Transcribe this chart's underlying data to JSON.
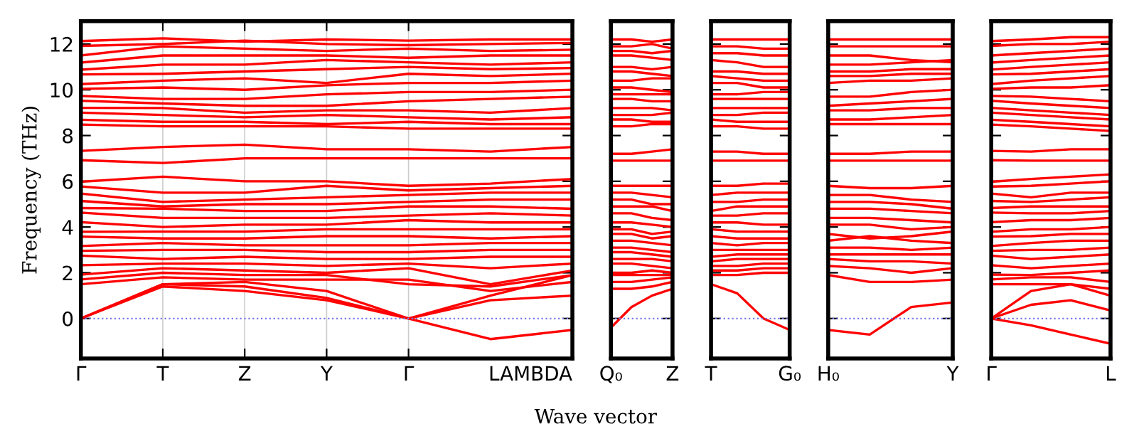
{
  "chart_data": [
    {
      "type": "line",
      "xlabel": "Wave vector",
      "ylabel": "Frequency (THz)",
      "categories": [
        "Γ",
        "T",
        "Z",
        "Y",
        "Γ",
        null,
        "LAMBDA"
      ],
      "ylim": [
        -1.75,
        13
      ],
      "yticks": [
        0,
        2,
        4,
        6,
        8,
        10,
        12
      ],
      "grid": "x",
      "line_style": "solid",
      "ref_lines": [
        {
          "axis": "y",
          "value": 0,
          "color": "#7777ee",
          "line_style": "dotted"
        }
      ],
      "series": [
        {
          "color": "#ff0000",
          "values": [
            12.13,
            12.25,
            12.1,
            12.2,
            12.15,
            12.2,
            12.2
          ]
        },
        {
          "color": "#ff0000",
          "values": [
            11.92,
            12.0,
            12.15,
            12.0,
            11.95,
            12.0,
            12.05
          ]
        },
        {
          "color": "#ff0000",
          "values": [
            11.5,
            11.9,
            11.8,
            11.7,
            11.8,
            11.7,
            11.75
          ]
        },
        {
          "color": "#ff0000",
          "values": [
            11.19,
            11.5,
            11.5,
            11.5,
            11.4,
            11.5,
            11.5
          ]
        },
        {
          "color": "#ff0000",
          "values": [
            10.88,
            11.1,
            11.1,
            11.3,
            11.2,
            11.1,
            11.2
          ]
        },
        {
          "color": "#ff0000",
          "values": [
            10.67,
            10.7,
            10.8,
            10.9,
            11.0,
            10.9,
            10.95
          ]
        },
        {
          "color": "#ff0000",
          "values": [
            10.25,
            10.4,
            10.5,
            10.3,
            10.7,
            10.6,
            10.7
          ]
        },
        {
          "color": "#ff0000",
          "values": [
            10.04,
            10.1,
            10.0,
            10.2,
            10.3,
            10.3,
            10.4
          ]
        },
        {
          "color": "#ff0000",
          "values": [
            9.73,
            9.6,
            9.6,
            9.8,
            9.9,
            9.9,
            10.0
          ]
        },
        {
          "color": "#ff0000",
          "values": [
            9.52,
            9.4,
            9.3,
            9.3,
            9.5,
            9.6,
            9.7
          ]
        },
        {
          "color": "#ff0000",
          "values": [
            9.21,
            9.2,
            9.0,
            9.1,
            9.1,
            9.0,
            9.2
          ]
        },
        {
          "color": "#ff0000",
          "values": [
            9.0,
            8.9,
            8.8,
            8.9,
            8.8,
            8.7,
            8.8
          ]
        },
        {
          "color": "#ff0000",
          "values": [
            8.69,
            8.6,
            8.6,
            8.5,
            8.6,
            8.5,
            8.5
          ]
        },
        {
          "color": "#ff0000",
          "values": [
            8.48,
            8.4,
            8.4,
            8.4,
            8.3,
            8.3,
            8.3
          ]
        },
        {
          "color": "#ff0000",
          "values": [
            7.33,
            7.5,
            7.6,
            7.4,
            7.4,
            7.3,
            7.5
          ]
        },
        {
          "color": "#ff0000",
          "values": [
            6.92,
            6.8,
            7.0,
            7.0,
            7.0,
            7.0,
            7.0
          ]
        },
        {
          "color": "#ff0000",
          "values": [
            5.98,
            6.2,
            6.0,
            6.0,
            5.8,
            5.9,
            6.1
          ]
        },
        {
          "color": "#ff0000",
          "values": [
            5.77,
            5.5,
            5.5,
            5.8,
            5.6,
            5.7,
            5.8
          ]
        },
        {
          "color": "#ff0000",
          "values": [
            5.46,
            5.1,
            5.2,
            5.3,
            5.4,
            5.5,
            5.5
          ]
        },
        {
          "color": "#ff0000",
          "values": [
            5.14,
            4.9,
            5.0,
            5.0,
            5.1,
            5.2,
            5.2
          ]
        },
        {
          "color": "#ff0000",
          "values": [
            4.83,
            4.8,
            4.7,
            4.7,
            4.9,
            4.9,
            4.8
          ]
        },
        {
          "color": "#ff0000",
          "values": [
            4.63,
            4.4,
            4.4,
            4.4,
            4.5,
            4.6,
            4.5
          ]
        },
        {
          "color": "#ff0000",
          "values": [
            4.21,
            4.0,
            4.1,
            4.1,
            4.3,
            4.2,
            4.2
          ]
        },
        {
          "color": "#ff0000",
          "values": [
            3.79,
            3.8,
            3.8,
            3.9,
            3.9,
            3.9,
            3.9
          ]
        },
        {
          "color": "#ff0000",
          "values": [
            3.58,
            3.5,
            3.5,
            3.6,
            3.6,
            3.5,
            3.6
          ]
        },
        {
          "color": "#ff0000",
          "values": [
            3.17,
            3.3,
            3.2,
            3.2,
            3.2,
            3.3,
            3.3
          ]
        },
        {
          "color": "#ff0000",
          "values": [
            2.96,
            3.0,
            3.0,
            2.9,
            2.9,
            3.0,
            3.0
          ]
        },
        {
          "color": "#ff0000",
          "values": [
            2.75,
            2.6,
            2.7,
            2.6,
            2.6,
            2.7,
            2.7
          ]
        },
        {
          "color": "#ff0000",
          "values": [
            2.33,
            2.4,
            2.4,
            2.3,
            2.4,
            2.2,
            2.4
          ]
        },
        {
          "color": "#ff0000",
          "values": [
            1.92,
            2.2,
            2.1,
            2.0,
            2.2,
            1.5,
            2.1
          ]
        },
        {
          "color": "#ff0000",
          "values": [
            1.71,
            2.0,
            1.9,
            1.9,
            1.5,
            1.4,
            1.9
          ]
        },
        {
          "color": "#ff0000",
          "values": [
            1.5,
            1.8,
            1.7,
            1.7,
            1.7,
            1.2,
            1.6
          ]
        },
        {
          "color": "#ff0000",
          "values": [
            0,
            1.5,
            1.6,
            1.2,
            0,
            1.0,
            1.9
          ]
        },
        {
          "color": "#ff0000",
          "values": [
            0,
            1.5,
            1.4,
            0.9,
            0,
            0.8,
            1.0
          ]
        },
        {
          "color": "#ff0000",
          "values": [
            0,
            1.4,
            1.2,
            0.8,
            0,
            -0.9,
            -0.5
          ]
        }
      ]
    },
    {
      "type": "line",
      "categories": [
        "Q₀",
        null,
        null,
        "Z"
      ],
      "ylim": [
        -1.75,
        13
      ],
      "yticks": [
        0,
        2,
        4,
        6,
        8,
        10,
        12
      ],
      "tick_labels": "x",
      "line_style": "solid",
      "ref_lines": [
        {
          "axis": "y",
          "value": 0,
          "color": "#7777ee",
          "line_style": "dotted"
        }
      ],
      "series": [
        {
          "color": "#ff0000",
          "values": [
            12.2,
            12.2,
            12.1,
            12.2
          ]
        },
        {
          "color": "#ff0000",
          "values": [
            11.9,
            11.9,
            12.0,
            11.8
          ]
        },
        {
          "color": "#ff0000",
          "values": [
            11.7,
            11.7,
            11.6,
            11.7
          ]
        },
        {
          "color": "#ff0000",
          "values": [
            11.5,
            11.5,
            11.4,
            11.3
          ]
        },
        {
          "color": "#ff0000",
          "values": [
            11.0,
            11.0,
            10.9,
            11.0
          ]
        },
        {
          "color": "#ff0000",
          "values": [
            10.8,
            10.8,
            10.7,
            10.6
          ]
        },
        {
          "color": "#ff0000",
          "values": [
            10.4,
            10.4,
            10.5,
            10.5
          ]
        },
        {
          "color": "#ff0000",
          "values": [
            10.1,
            10.1,
            10.0,
            9.9
          ]
        },
        {
          "color": "#ff0000",
          "values": [
            9.8,
            9.8,
            9.8,
            9.8
          ]
        },
        {
          "color": "#ff0000",
          "values": [
            9.6,
            9.6,
            9.5,
            9.5
          ]
        },
        {
          "color": "#ff0000",
          "values": [
            9.2,
            9.2,
            9.2,
            9.1
          ]
        },
        {
          "color": "#ff0000",
          "values": [
            8.9,
            8.9,
            8.9,
            9.0
          ]
        },
        {
          "color": "#ff0000",
          "values": [
            8.7,
            8.7,
            8.6,
            8.6
          ]
        },
        {
          "color": "#ff0000",
          "values": [
            8.4,
            8.4,
            8.5,
            8.5
          ]
        },
        {
          "color": "#ff0000",
          "values": [
            7.2,
            7.2,
            7.3,
            7.4
          ]
        },
        {
          "color": "#ff0000",
          "values": [
            6.9,
            6.9,
            6.9,
            6.9
          ]
        },
        {
          "color": "#ff0000",
          "values": [
            5.8,
            5.8,
            5.8,
            5.8
          ]
        },
        {
          "color": "#ff0000",
          "values": [
            5.5,
            5.5,
            5.4,
            5.3
          ]
        },
        {
          "color": "#ff0000",
          "values": [
            5.2,
            5.2,
            5.0,
            5.0
          ]
        },
        {
          "color": "#ff0000",
          "values": [
            4.9,
            4.9,
            4.9,
            4.7
          ]
        },
        {
          "color": "#ff0000",
          "values": [
            4.6,
            4.6,
            4.4,
            4.3
          ]
        },
        {
          "color": "#ff0000",
          "values": [
            4.2,
            4.2,
            4.1,
            4.0
          ]
        },
        {
          "color": "#ff0000",
          "values": [
            3.9,
            3.9,
            3.7,
            3.8
          ]
        },
        {
          "color": "#ff0000",
          "values": [
            3.7,
            3.7,
            3.5,
            3.6
          ]
        },
        {
          "color": "#ff0000",
          "values": [
            3.4,
            3.4,
            3.3,
            3.2
          ]
        },
        {
          "color": "#ff0000",
          "values": [
            3.1,
            3.1,
            3.0,
            2.9
          ]
        },
        {
          "color": "#ff0000",
          "values": [
            2.9,
            2.9,
            2.8,
            2.7
          ]
        },
        {
          "color": "#ff0000",
          "values": [
            2.6,
            2.6,
            2.6,
            2.5
          ]
        },
        {
          "color": "#ff0000",
          "values": [
            2.4,
            2.4,
            2.3,
            2.2
          ]
        },
        {
          "color": "#ff0000",
          "values": [
            2.0,
            2.0,
            2.1,
            2.0
          ]
        },
        {
          "color": "#ff0000",
          "values": [
            1.9,
            1.9,
            1.9,
            1.9
          ]
        },
        {
          "color": "#ff0000",
          "values": [
            1.6,
            1.6,
            1.7,
            1.8
          ]
        },
        {
          "color": "#ff0000",
          "values": [
            1.3,
            1.3,
            1.4,
            1.6
          ]
        },
        {
          "color": "#ff0000",
          "values": [
            -0.4,
            0.5,
            1.0,
            1.3
          ]
        }
      ]
    },
    {
      "type": "line",
      "categories": [
        "T",
        null,
        null,
        "G₀"
      ],
      "ylim": [
        -1.75,
        13
      ],
      "yticks": [
        0,
        2,
        4,
        6,
        8,
        10,
        12
      ],
      "tick_labels": "x",
      "line_style": "solid",
      "ref_lines": [
        {
          "axis": "y",
          "value": 0,
          "color": "#7777ee",
          "line_style": "dotted"
        }
      ],
      "series": [
        {
          "color": "#ff0000",
          "values": [
            12.2,
            12.2,
            12.2,
            12.2
          ]
        },
        {
          "color": "#ff0000",
          "values": [
            11.9,
            11.9,
            11.8,
            11.8
          ]
        },
        {
          "color": "#ff0000",
          "values": [
            11.6,
            11.6,
            11.5,
            11.5
          ]
        },
        {
          "color": "#ff0000",
          "values": [
            11.3,
            11.2,
            11.0,
            11.0
          ]
        },
        {
          "color": "#ff0000",
          "values": [
            10.8,
            10.8,
            10.7,
            10.7
          ]
        },
        {
          "color": "#ff0000",
          "values": [
            10.6,
            10.5,
            10.4,
            10.4
          ]
        },
        {
          "color": "#ff0000",
          "values": [
            10.3,
            10.3,
            10.1,
            10.1
          ]
        },
        {
          "color": "#ff0000",
          "values": [
            9.8,
            9.8,
            9.9,
            9.9
          ]
        },
        {
          "color": "#ff0000",
          "values": [
            9.6,
            9.6,
            9.6,
            9.6
          ]
        },
        {
          "color": "#ff0000",
          "values": [
            9.2,
            9.2,
            9.2,
            9.2
          ]
        },
        {
          "color": "#ff0000",
          "values": [
            8.9,
            8.9,
            9.0,
            9.0
          ]
        },
        {
          "color": "#ff0000",
          "values": [
            8.7,
            8.6,
            8.6,
            8.6
          ]
        },
        {
          "color": "#ff0000",
          "values": [
            8.4,
            8.4,
            8.3,
            8.3
          ]
        },
        {
          "color": "#ff0000",
          "values": [
            7.3,
            7.3,
            7.2,
            7.2
          ]
        },
        {
          "color": "#ff0000",
          "values": [
            6.9,
            6.9,
            6.9,
            6.9
          ]
        },
        {
          "color": "#ff0000",
          "values": [
            5.8,
            5.8,
            5.9,
            5.9
          ]
        },
        {
          "color": "#ff0000",
          "values": [
            5.4,
            5.5,
            5.5,
            5.5
          ]
        },
        {
          "color": "#ff0000",
          "values": [
            5.1,
            5.1,
            5.2,
            5.2
          ]
        },
        {
          "color": "#ff0000",
          "values": [
            4.7,
            4.9,
            4.9,
            4.9
          ]
        },
        {
          "color": "#ff0000",
          "values": [
            4.5,
            4.5,
            4.6,
            4.6
          ]
        },
        {
          "color": "#ff0000",
          "values": [
            4.2,
            4.2,
            4.1,
            4.1
          ]
        },
        {
          "color": "#ff0000",
          "values": [
            3.9,
            3.8,
            3.8,
            3.8
          ]
        },
        {
          "color": "#ff0000",
          "values": [
            3.6,
            3.5,
            3.5,
            3.5
          ]
        },
        {
          "color": "#ff0000",
          "values": [
            3.3,
            3.2,
            3.3,
            3.3
          ]
        },
        {
          "color": "#ff0000",
          "values": [
            3.0,
            3.0,
            3.0,
            3.0
          ]
        },
        {
          "color": "#ff0000",
          "values": [
            2.7,
            2.8,
            2.8,
            2.8
          ]
        },
        {
          "color": "#ff0000",
          "values": [
            2.5,
            2.6,
            2.6,
            2.6
          ]
        },
        {
          "color": "#ff0000",
          "values": [
            2.3,
            2.3,
            2.4,
            2.4
          ]
        },
        {
          "color": "#ff0000",
          "values": [
            2.1,
            2.1,
            2.2,
            2.2
          ]
        },
        {
          "color": "#ff0000",
          "values": [
            1.9,
            1.9,
            2.0,
            2.0
          ]
        },
        {
          "color": "#ff0000",
          "values": [
            1.5,
            1.1,
            0.0,
            -0.5
          ]
        }
      ]
    },
    {
      "type": "line",
      "categories": [
        "H₀",
        null,
        null,
        "Y"
      ],
      "ylim": [
        -1.75,
        13
      ],
      "yticks": [
        0,
        2,
        4,
        6,
        8,
        10,
        12
      ],
      "tick_labels": "x",
      "line_style": "solid",
      "ref_lines": [
        {
          "axis": "y",
          "value": 0,
          "color": "#7777ee",
          "line_style": "dotted"
        }
      ],
      "series": [
        {
          "color": "#ff0000",
          "values": [
            12.2,
            12.2,
            12.2,
            12.2
          ]
        },
        {
          "color": "#ff0000",
          "values": [
            11.9,
            11.9,
            11.9,
            11.9
          ]
        },
        {
          "color": "#ff0000",
          "values": [
            11.5,
            11.5,
            11.3,
            11.2
          ]
        },
        {
          "color": "#ff0000",
          "values": [
            11.1,
            11.1,
            11.2,
            11.3
          ]
        },
        {
          "color": "#ff0000",
          "values": [
            10.8,
            10.8,
            10.9,
            10.9
          ]
        },
        {
          "color": "#ff0000",
          "values": [
            10.6,
            10.6,
            10.7,
            10.7
          ]
        },
        {
          "color": "#ff0000",
          "values": [
            10.3,
            10.4,
            10.4,
            10.5
          ]
        },
        {
          "color": "#ff0000",
          "values": [
            9.7,
            9.7,
            9.9,
            10.0
          ]
        },
        {
          "color": "#ff0000",
          "values": [
            9.3,
            9.4,
            9.5,
            9.6
          ]
        },
        {
          "color": "#ff0000",
          "values": [
            9.1,
            9.1,
            9.2,
            9.2
          ]
        },
        {
          "color": "#ff0000",
          "values": [
            8.7,
            8.7,
            8.8,
            8.9
          ]
        },
        {
          "color": "#ff0000",
          "values": [
            8.5,
            8.5,
            8.5,
            8.5
          ]
        },
        {
          "color": "#ff0000",
          "values": [
            7.2,
            7.2,
            7.3,
            7.3
          ]
        },
        {
          "color": "#ff0000",
          "values": [
            6.9,
            6.9,
            6.9,
            6.9
          ]
        },
        {
          "color": "#ff0000",
          "values": [
            5.8,
            5.7,
            5.7,
            5.8
          ]
        },
        {
          "color": "#ff0000",
          "values": [
            5.4,
            5.4,
            5.2,
            5.1
          ]
        },
        {
          "color": "#ff0000",
          "values": [
            5.1,
            5.1,
            5.0,
            4.8
          ]
        },
        {
          "color": "#ff0000",
          "values": [
            4.8,
            4.8,
            4.7,
            4.6
          ]
        },
        {
          "color": "#ff0000",
          "values": [
            4.4,
            4.4,
            4.3,
            4.2
          ]
        },
        {
          "color": "#ff0000",
          "values": [
            4.1,
            4.1,
            3.9,
            4.0
          ]
        },
        {
          "color": "#ff0000",
          "values": [
            3.7,
            3.5,
            3.6,
            3.8
          ]
        },
        {
          "color": "#ff0000",
          "values": [
            3.4,
            3.6,
            3.4,
            3.3
          ]
        },
        {
          "color": "#ff0000",
          "values": [
            3.1,
            3.1,
            3.0,
            3.1
          ]
        },
        {
          "color": "#ff0000",
          "values": [
            2.8,
            2.8,
            2.8,
            2.8
          ]
        },
        {
          "color": "#ff0000",
          "values": [
            2.6,
            2.5,
            2.5,
            2.4
          ]
        },
        {
          "color": "#ff0000",
          "values": [
            2.3,
            2.2,
            2.0,
            2.2
          ]
        },
        {
          "color": "#ff0000",
          "values": [
            1.9,
            1.6,
            1.6,
            1.7
          ]
        },
        {
          "color": "#ff0000",
          "values": [
            -0.5,
            -0.7,
            0.5,
            0.7
          ]
        }
      ]
    },
    {
      "type": "line",
      "categories": [
        "Γ",
        null,
        null,
        "L"
      ],
      "ylim": [
        -1.75,
        13
      ],
      "yticks": [
        0,
        2,
        4,
        6,
        8,
        10,
        12
      ],
      "tick_labels": "x",
      "line_style": "solid",
      "ref_lines": [
        {
          "axis": "y",
          "value": 0,
          "color": "#7777ee",
          "line_style": "dotted"
        }
      ],
      "series": [
        {
          "color": "#ff0000",
          "values": [
            12.13,
            12.2,
            12.3,
            12.3
          ]
        },
        {
          "color": "#ff0000",
          "values": [
            11.92,
            12.0,
            12.0,
            12.1
          ]
        },
        {
          "color": "#ff0000",
          "values": [
            11.5,
            11.6,
            11.7,
            11.8
          ]
        },
        {
          "color": "#ff0000",
          "values": [
            11.19,
            11.3,
            11.4,
            11.5
          ]
        },
        {
          "color": "#ff0000",
          "values": [
            10.88,
            11.0,
            11.1,
            11.2
          ]
        },
        {
          "color": "#ff0000",
          "values": [
            10.67,
            10.7,
            10.8,
            10.9
          ]
        },
        {
          "color": "#ff0000",
          "values": [
            10.25,
            10.4,
            10.5,
            10.6
          ]
        },
        {
          "color": "#ff0000",
          "values": [
            10.04,
            10.1,
            10.1,
            10.2
          ]
        },
        {
          "color": "#ff0000",
          "values": [
            9.73,
            9.7,
            9.6,
            9.5
          ]
        },
        {
          "color": "#ff0000",
          "values": [
            9.52,
            9.4,
            9.3,
            9.2
          ]
        },
        {
          "color": "#ff0000",
          "values": [
            9.21,
            9.1,
            9.0,
            8.9
          ]
        },
        {
          "color": "#ff0000",
          "values": [
            9.0,
            8.9,
            8.8,
            8.7
          ]
        },
        {
          "color": "#ff0000",
          "values": [
            8.69,
            8.6,
            8.5,
            8.4
          ]
        },
        {
          "color": "#ff0000",
          "values": [
            8.48,
            8.4,
            8.3,
            8.2
          ]
        },
        {
          "color": "#ff0000",
          "values": [
            7.33,
            7.3,
            7.4,
            7.4
          ]
        },
        {
          "color": "#ff0000",
          "values": [
            6.92,
            6.9,
            6.9,
            6.9
          ]
        },
        {
          "color": "#ff0000",
          "values": [
            5.98,
            6.1,
            6.2,
            6.3
          ]
        },
        {
          "color": "#ff0000",
          "values": [
            5.77,
            5.8,
            5.9,
            6.0
          ]
        },
        {
          "color": "#ff0000",
          "values": [
            5.46,
            5.3,
            5.5,
            5.5
          ]
        },
        {
          "color": "#ff0000",
          "values": [
            5.14,
            5.1,
            5.2,
            5.3
          ]
        },
        {
          "color": "#ff0000",
          "values": [
            4.83,
            4.9,
            4.9,
            4.9
          ]
        },
        {
          "color": "#ff0000",
          "values": [
            4.63,
            4.6,
            4.6,
            4.7
          ]
        },
        {
          "color": "#ff0000",
          "values": [
            4.21,
            4.3,
            4.3,
            4.4
          ]
        },
        {
          "color": "#ff0000",
          "values": [
            3.79,
            3.9,
            3.9,
            4.0
          ]
        },
        {
          "color": "#ff0000",
          "values": [
            3.58,
            3.6,
            3.7,
            3.7
          ]
        },
        {
          "color": "#ff0000",
          "values": [
            3.17,
            3.3,
            3.4,
            3.4
          ]
        },
        {
          "color": "#ff0000",
          "values": [
            2.96,
            3.0,
            3.0,
            3.1
          ]
        },
        {
          "color": "#ff0000",
          "values": [
            2.75,
            2.6,
            2.7,
            2.8
          ]
        },
        {
          "color": "#ff0000",
          "values": [
            2.33,
            2.2,
            2.3,
            2.4
          ]
        },
        {
          "color": "#ff0000",
          "values": [
            1.92,
            1.9,
            2.0,
            2.1
          ]
        },
        {
          "color": "#ff0000",
          "values": [
            1.71,
            1.8,
            1.8,
            1.6
          ]
        },
        {
          "color": "#ff0000",
          "values": [
            1.5,
            1.5,
            1.5,
            1.3
          ]
        },
        {
          "color": "#ff0000",
          "values": [
            0,
            1.2,
            1.5,
            1.0
          ]
        },
        {
          "color": "#ff0000",
          "values": [
            0,
            0.6,
            0.8,
            0.35
          ]
        },
        {
          "color": "#ff0000",
          "values": [
            0,
            -0.3,
            -0.7,
            -1.1
          ]
        }
      ]
    }
  ]
}
